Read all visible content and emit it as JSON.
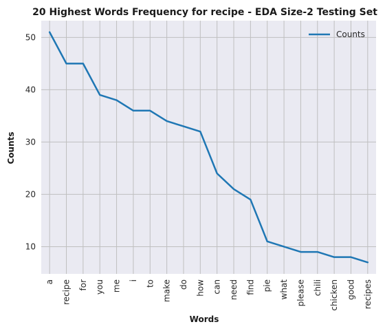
{
  "chart_data": {
    "type": "line",
    "title": "20 Highest Words Frequency for recipe - EDA Size-2 Testing Set",
    "xlabel": "Words",
    "ylabel": "Counts",
    "categories": [
      "a",
      "recipe",
      "for",
      "you",
      "me",
      "i",
      "to",
      "make",
      "do",
      "how",
      "can",
      "need",
      "find",
      "pie",
      "what",
      "please",
      "chili",
      "chicken",
      "good",
      "recipes"
    ],
    "series": [
      {
        "name": "Counts",
        "values": [
          51,
          45,
          45,
          39,
          38,
          36,
          36,
          34,
          33,
          32,
          24,
          21,
          19,
          11,
          10,
          9,
          9,
          8,
          8,
          7
        ],
        "color": "#1f77b4"
      }
    ],
    "yticks": [
      10,
      20,
      30,
      40,
      50
    ],
    "ylim": [
      4.8,
      53.2
    ],
    "grid": true,
    "legend_position": "top-right",
    "background_color": "#eaeaf2",
    "grid_color": "#bfbfbf"
  }
}
